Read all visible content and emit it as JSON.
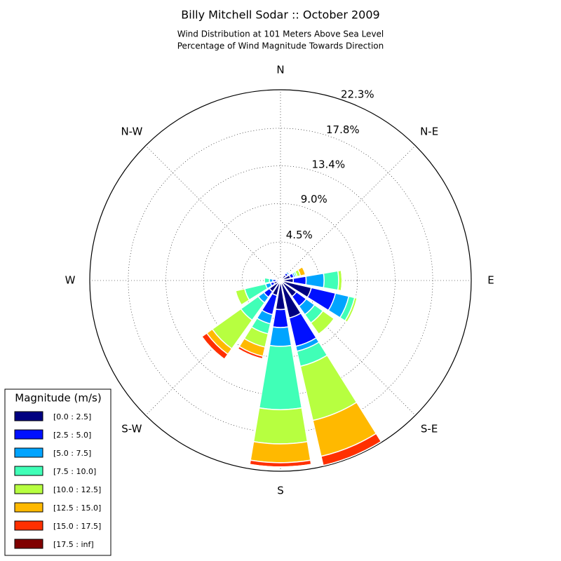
{
  "chart_data": {
    "type": "windrose",
    "title": "Billy Mitchell Sodar :: October 2009",
    "subtitle": [
      "Wind Distribution at 101 Meters Above Sea Level",
      "Percentage of Wind Magnitude Towards Direction"
    ],
    "categories": [
      "N",
      null,
      "N-E",
      null,
      "E",
      null,
      "S-E",
      null,
      "S",
      null,
      "S-W",
      null,
      "W",
      null,
      "N-W",
      null
    ],
    "ylim": [
      0,
      22.3
    ],
    "yticks": [
      {
        "value": 4.5,
        "label": "4.5%"
      },
      {
        "value": 9.0,
        "label": "9.0%"
      },
      {
        "value": 13.4,
        "label": "13.4%"
      },
      {
        "value": 17.8,
        "label": "17.8%"
      },
      {
        "value": 22.3,
        "label": "22.3%"
      }
    ],
    "grid": true,
    "legend_title": "Magnitude (m/s)",
    "legend_position": "lower left",
    "series": [
      {
        "name": "[0.0 : 2.5]",
        "color": "#000080",
        "values": [
          0.2,
          0.3,
          0.8,
          1.2,
          1.5,
          3.7,
          2.3,
          4.5,
          3.4,
          1.8,
          1.6,
          0.8,
          0.5,
          0.2,
          0.2,
          0.2
        ]
      },
      {
        "name": "[2.5 : 5.0]",
        "color": "#0010ff",
        "values": [
          0,
          0.2,
          0.3,
          0.4,
          1.5,
          2.9,
          1.4,
          3.4,
          2.1,
          2.3,
          0.8,
          0.4,
          0.4,
          0,
          0,
          0
        ]
      },
      {
        "name": "[5.0 : 7.5]",
        "color": "#00a4ff",
        "values": [
          0,
          0,
          0.2,
          0.2,
          2.1,
          1.6,
          1.2,
          0.6,
          2.2,
          1.1,
          0.8,
          0.6,
          0.4,
          0,
          0,
          0
        ]
      },
      {
        "name": "[7.5 : 10.0]",
        "color": "#40ffb7",
        "values": [
          0,
          0,
          0,
          0.2,
          1.7,
          0.7,
          1.2,
          1.8,
          7.4,
          1.2,
          2.5,
          2.5,
          0.6,
          0,
          0,
          0
        ]
      },
      {
        "name": "[10.0 : 12.5]",
        "color": "#b7ff40",
        "values": [
          0,
          0,
          0,
          0.4,
          0.4,
          0.3,
          1.6,
          6.5,
          4.0,
          1.6,
          4.1,
          1.1,
          0,
          0,
          0,
          0
        ]
      },
      {
        "name": "[12.5 : 15.0]",
        "color": "#ffb900",
        "values": [
          0,
          0,
          0,
          0.6,
          0,
          0,
          0,
          4.3,
          2.2,
          1.1,
          0.8,
          0,
          0,
          0,
          0,
          0
        ]
      },
      {
        "name": "[15.0 : 17.5]",
        "color": "#ff3000",
        "values": [
          0,
          0,
          0,
          0,
          0,
          0,
          0,
          1.1,
          0.5,
          0.3,
          0.7,
          0,
          0,
          0,
          0,
          0
        ]
      },
      {
        "name": "[17.5 : inf]",
        "color": "#800000",
        "values": [
          0,
          0,
          0,
          0,
          0,
          0,
          0,
          0,
          0,
          0,
          0,
          0,
          0,
          0,
          0,
          0
        ]
      }
    ]
  }
}
